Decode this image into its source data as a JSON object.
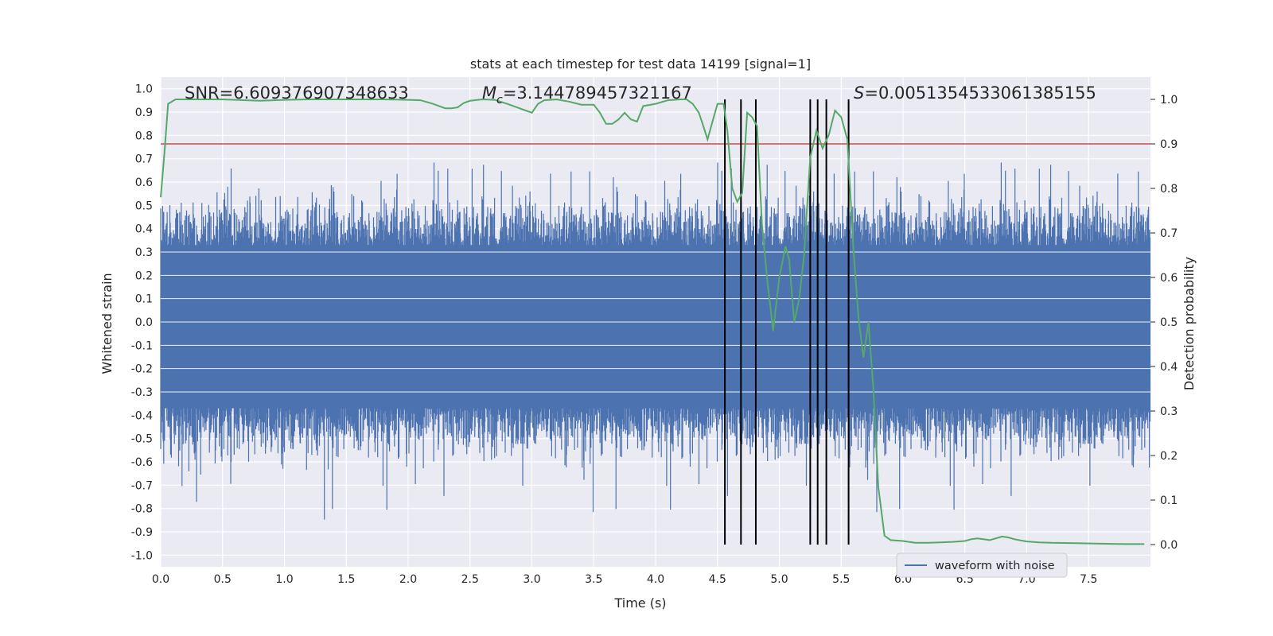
{
  "chart_data": {
    "type": "line",
    "title": "stats at each timestep for test data 14199 [signal=1]",
    "xlabel": "Time (s)",
    "ylabel": "Whitened strain",
    "y2label": "Detection probability",
    "xlim": [
      0.0,
      8.0
    ],
    "ylim": [
      -1.05,
      1.05
    ],
    "y2lim": [
      -0.05,
      1.05
    ],
    "xticks": [
      "0.0",
      "0.5",
      "1.0",
      "1.5",
      "2.0",
      "2.5",
      "3.0",
      "3.5",
      "4.0",
      "4.5",
      "5.0",
      "5.5",
      "6.0",
      "6.5",
      "7.0",
      "7.5"
    ],
    "yticks": [
      "1.0",
      "0.9",
      "0.8",
      "0.7",
      "0.6",
      "0.5",
      "0.4",
      "0.3",
      "0.2",
      "0.1",
      "0.0",
      "-0.1",
      "-0.2",
      "-0.3",
      "-0.4",
      "-0.5",
      "-0.6",
      "-0.7",
      "-0.8",
      "-0.9",
      "-1.0"
    ],
    "y2ticks": [
      "1.0",
      "0.9",
      "0.8",
      "0.7",
      "0.6",
      "0.5",
      "0.4",
      "0.3",
      "0.2",
      "0.1",
      "0.0"
    ],
    "grid": true,
    "legend_position": "lower-right",
    "annotations": {
      "snr": "SNR=6.609376907348633",
      "mc_symbol": "M",
      "mc_sub": "c",
      "mc_value": "=3.144789457321167",
      "s_symbol": "S",
      "s_value": "=0.0051354533061385155"
    },
    "threshold_y2": 0.9,
    "detection_markers_x": [
      4.56,
      4.69,
      4.81,
      5.25,
      5.31,
      5.38,
      5.56
    ],
    "series": [
      {
        "name": "waveform with noise",
        "color": "#4c72b0",
        "envelope": "noise_spikes_approx"
      },
      {
        "color": "#55a868",
        "axis": "y2",
        "x": [
          0.0,
          0.03,
          0.06,
          0.12,
          0.2,
          0.3,
          0.5,
          0.8,
          1.0,
          1.2,
          1.5,
          1.8,
          2.0,
          2.1,
          2.2,
          2.3,
          2.35,
          2.4,
          2.45,
          2.5,
          2.6,
          2.7,
          2.8,
          2.9,
          2.95,
          3.0,
          3.05,
          3.1,
          3.2,
          3.3,
          3.4,
          3.5,
          3.55,
          3.6,
          3.65,
          3.7,
          3.75,
          3.8,
          3.85,
          3.9,
          4.0,
          4.1,
          4.2,
          4.25,
          4.3,
          4.35,
          4.38,
          4.42,
          4.46,
          4.5,
          4.55,
          4.58,
          4.62,
          4.66,
          4.7,
          4.74,
          4.78,
          4.82,
          4.86,
          4.9,
          4.95,
          5.0,
          5.05,
          5.08,
          5.12,
          5.16,
          5.2,
          5.25,
          5.3,
          5.35,
          5.4,
          5.45,
          5.5,
          5.55,
          5.6,
          5.64,
          5.68,
          5.72,
          5.76,
          5.8,
          5.85,
          5.9,
          6.0,
          6.1,
          6.2,
          6.3,
          6.4,
          6.5,
          6.55,
          6.6,
          6.65,
          6.7,
          6.75,
          6.8,
          6.85,
          6.9,
          7.0,
          7.1,
          7.2,
          7.4,
          7.6,
          7.8,
          7.95
        ],
        "y": [
          0.78,
          0.88,
          0.99,
          1.0,
          1.0,
          1.0,
          1.0,
          0.997,
          0.999,
          1.0,
          1.0,
          1.0,
          0.999,
          0.998,
          0.99,
          0.98,
          0.98,
          0.982,
          0.992,
          0.997,
          1.0,
          0.999,
          0.99,
          0.98,
          0.975,
          0.97,
          0.99,
          0.998,
          1.0,
          0.995,
          0.988,
          0.988,
          0.97,
          0.945,
          0.945,
          0.955,
          0.97,
          0.955,
          0.95,
          0.985,
          0.99,
          0.998,
          1.0,
          1.0,
          0.99,
          0.97,
          0.945,
          0.91,
          0.95,
          0.99,
          0.99,
          0.93,
          0.8,
          0.77,
          0.79,
          0.97,
          0.96,
          0.94,
          0.72,
          0.6,
          0.48,
          0.6,
          0.67,
          0.64,
          0.5,
          0.55,
          0.65,
          0.87,
          0.93,
          0.89,
          0.92,
          0.975,
          0.96,
          0.91,
          0.66,
          0.51,
          0.42,
          0.5,
          0.35,
          0.13,
          0.02,
          0.01,
          0.008,
          0.004,
          0.004,
          0.005,
          0.006,
          0.008,
          0.012,
          0.014,
          0.012,
          0.01,
          0.014,
          0.018,
          0.016,
          0.012,
          0.007,
          0.005,
          0.004,
          0.003,
          0.002,
          0.001,
          0.001
        ]
      }
    ]
  }
}
